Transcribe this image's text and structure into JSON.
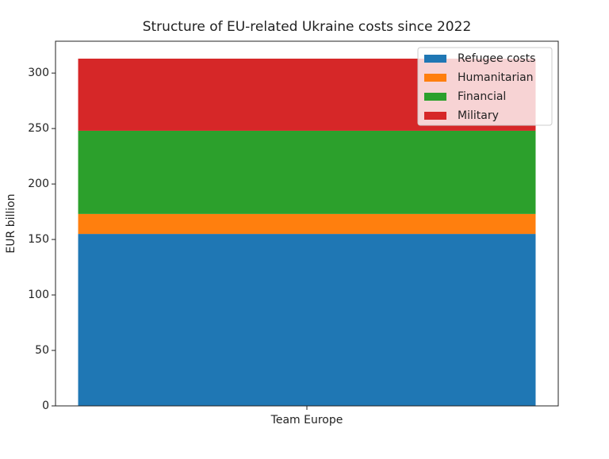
{
  "chart_data": {
    "type": "bar",
    "stacked": true,
    "title": "Structure of EU-related Ukraine costs since 2022",
    "y_label": "EUR billion",
    "categories": [
      "Team Europe"
    ],
    "series": [
      {
        "name": "Refugee costs",
        "color": "#1f77b4",
        "values": [
          155
        ]
      },
      {
        "name": "Humanitarian",
        "color": "#ff7f0e",
        "values": [
          18
        ]
      },
      {
        "name": "Financial",
        "color": "#2ca02c",
        "values": [
          75
        ]
      },
      {
        "name": "Military",
        "color": "#d62728",
        "values": [
          65
        ]
      }
    ],
    "ylim": [
      0,
      328.7
    ],
    "yticks": [
      0,
      50,
      100,
      150,
      200,
      250,
      300
    ],
    "grid": false,
    "legend": "upper right"
  }
}
